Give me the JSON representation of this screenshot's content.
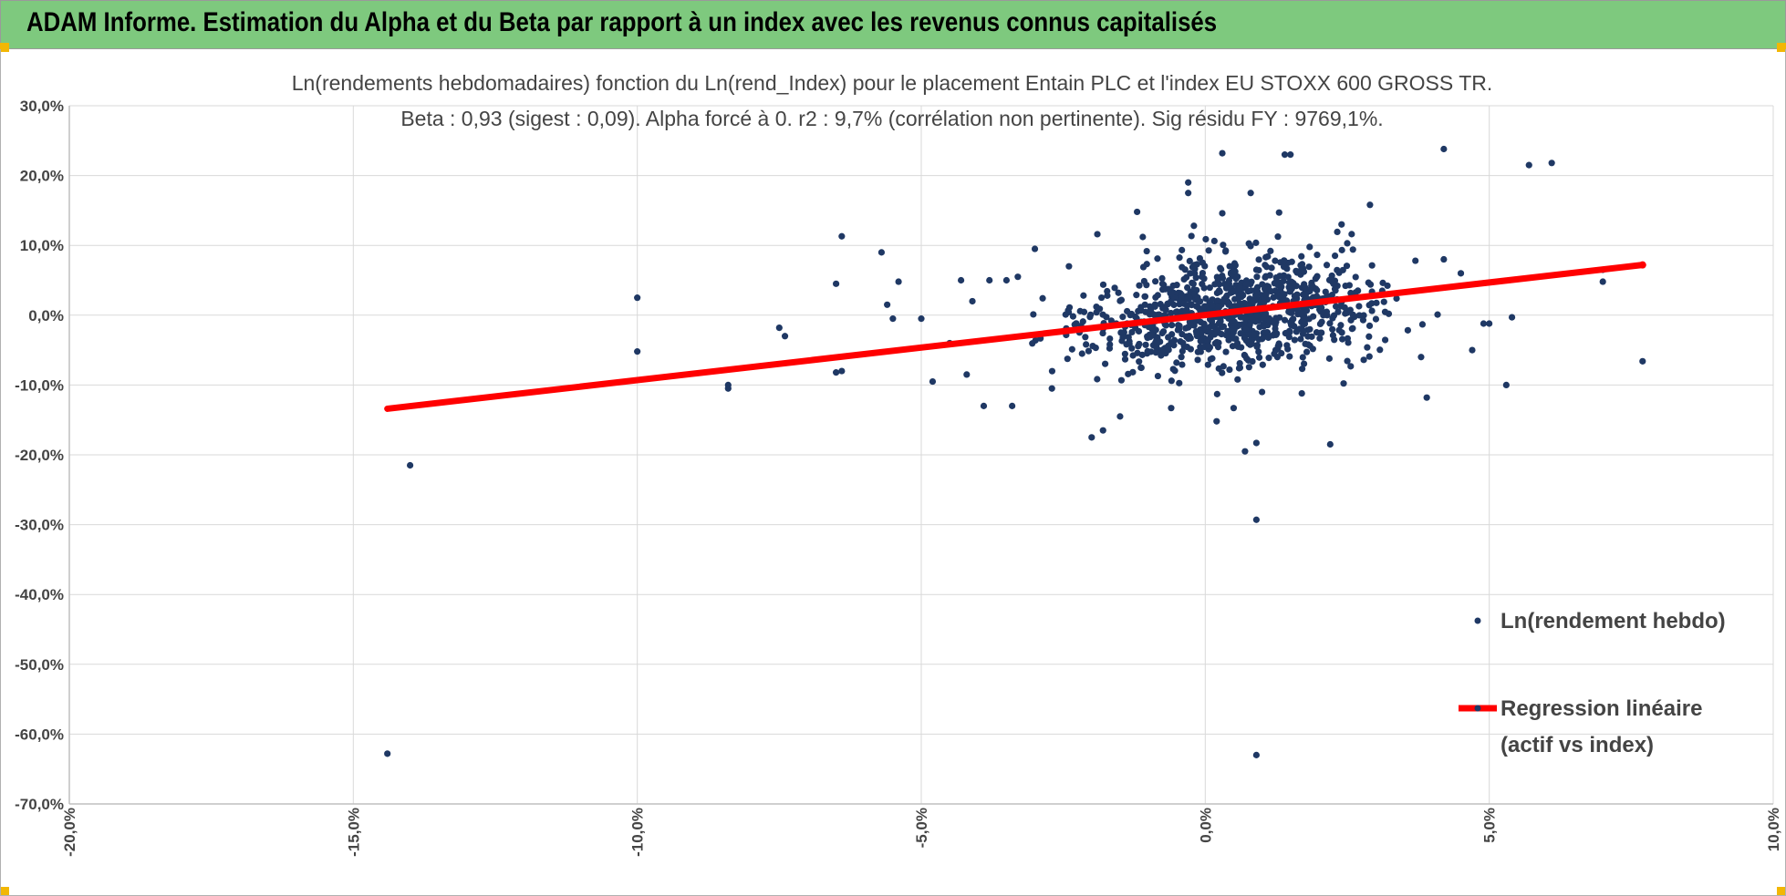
{
  "header": {
    "title": "ADAM Informe. Estimation du Alpha et du Beta par rapport à un index avec les revenus connus capitalisés"
  },
  "colors": {
    "banner_bg": "#7ec97e",
    "corner_marker": "#f2b705",
    "scatter_points": "#1f3864",
    "regression_line": "#ff0000",
    "gridlines": "#d9d9d9"
  },
  "chart_data": {
    "type": "scatter",
    "title_line1": "Ln(rendements hebdomadaires) fonction du Ln(rend_Index) pour le placement Entain PLC et l'index EU STOXX 600 GROSS TR.",
    "title_line2": "Beta : 0,93 (sigest : 0,09).  Alpha forcé à 0. r2 : 9,7% (corrélation non pertinente). Sig résidu FY : 9769,1%.",
    "xlabel": "",
    "ylabel": "",
    "xlim": [
      -0.2,
      0.1
    ],
    "ylim": [
      -0.7,
      0.3
    ],
    "x_ticks": [
      "-20,0%",
      "-15,0%",
      "-10,0%",
      "-5,0%",
      "0,0%",
      "5,0%",
      "10,0%"
    ],
    "y_ticks": [
      "30,0%",
      "20,0%",
      "10,0%",
      "0,0%",
      "-10,0%",
      "-20,0%",
      "-30,0%",
      "-40,0%",
      "-50,0%",
      "-60,0%",
      "-70,0%"
    ],
    "grid": true,
    "legend_position": "bottom-right",
    "series": [
      {
        "name": "Ln(rendement hebdo)",
        "kind": "scatter",
        "points": [
          [
            -0.144,
            -0.628
          ],
          [
            -0.14,
            -0.215
          ],
          [
            -0.1,
            0.025
          ],
          [
            -0.1,
            -0.052
          ],
          [
            -0.084,
            -0.1
          ],
          [
            -0.084,
            -0.105
          ],
          [
            -0.075,
            -0.018
          ],
          [
            -0.074,
            -0.03
          ],
          [
            -0.065,
            0.045
          ],
          [
            -0.064,
            0.113
          ],
          [
            -0.065,
            -0.082
          ],
          [
            -0.064,
            -0.08
          ],
          [
            -0.057,
            0.09
          ],
          [
            -0.056,
            0.015
          ],
          [
            -0.055,
            -0.005
          ],
          [
            -0.054,
            0.048
          ],
          [
            -0.05,
            -0.005
          ],
          [
            -0.048,
            -0.095
          ],
          [
            -0.045,
            -0.04
          ],
          [
            -0.043,
            0.05
          ],
          [
            -0.042,
            -0.085
          ],
          [
            -0.041,
            0.02
          ],
          [
            -0.039,
            -0.13
          ],
          [
            -0.038,
            0.05
          ],
          [
            -0.035,
            0.05
          ],
          [
            -0.034,
            -0.13
          ],
          [
            -0.033,
            0.055
          ],
          [
            -0.03,
            0.095
          ],
          [
            -0.027,
            -0.105
          ],
          [
            -0.024,
            0.07
          ],
          [
            -0.02,
            -0.175
          ],
          [
            -0.019,
            0.116
          ],
          [
            -0.018,
            -0.165
          ],
          [
            -0.015,
            -0.145
          ],
          [
            -0.012,
            0.148
          ],
          [
            -0.011,
            0.112
          ],
          [
            -0.006,
            -0.133
          ],
          [
            -0.003,
            0.19
          ],
          [
            -0.003,
            0.175
          ],
          [
            -0.002,
            0.128
          ],
          [
            0.002,
            -0.152
          ],
          [
            0.003,
            0.232
          ],
          [
            0.003,
            0.146
          ],
          [
            0.005,
            -0.133
          ],
          [
            0.007,
            -0.195
          ],
          [
            0.008,
            0.175
          ],
          [
            0.009,
            -0.183
          ],
          [
            0.009,
            -0.293
          ],
          [
            0.009,
            -0.63
          ],
          [
            0.01,
            -0.11
          ],
          [
            0.013,
            0.147
          ],
          [
            0.014,
            0.23
          ],
          [
            0.015,
            0.23
          ],
          [
            0.017,
            -0.112
          ],
          [
            0.022,
            -0.185
          ],
          [
            0.024,
            0.13
          ],
          [
            0.025,
            0.103
          ],
          [
            0.026,
            0.094
          ],
          [
            0.029,
            0.158
          ],
          [
            0.037,
            0.078
          ],
          [
            0.038,
            -0.06
          ],
          [
            0.039,
            -0.118
          ],
          [
            0.042,
            0.238
          ],
          [
            0.042,
            0.08
          ],
          [
            0.045,
            0.06
          ],
          [
            0.047,
            -0.05
          ],
          [
            0.049,
            -0.012
          ],
          [
            0.05,
            -0.012
          ],
          [
            0.053,
            -0.1
          ],
          [
            0.054,
            -0.003
          ],
          [
            0.057,
            0.215
          ],
          [
            0.061,
            0.218
          ],
          [
            0.07,
            0.065
          ],
          [
            0.07,
            0.048
          ],
          [
            0.077,
            -0.066
          ]
        ]
      },
      {
        "name": "Regression linéaire (actif vs index)",
        "legend_label_line1": "Regression linéaire",
        "legend_label_line2": "(actif vs index)",
        "kind": "line",
        "points": [
          [
            -0.144,
            -0.134
          ],
          [
            0.077,
            0.072
          ]
        ]
      }
    ]
  }
}
